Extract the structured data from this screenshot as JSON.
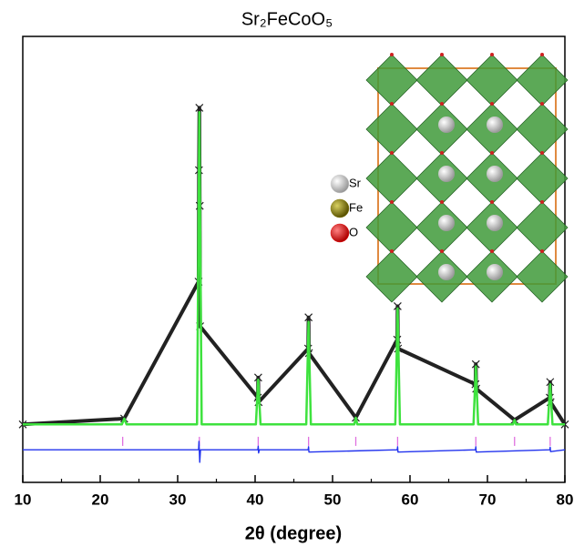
{
  "chart_data": {
    "type": "line",
    "title": "Sr₂FeCoO₅",
    "x_label": "2θ (degree)",
    "xlim": [
      10,
      80
    ],
    "xticks": [
      10,
      20,
      30,
      40,
      50,
      60,
      70,
      80
    ],
    "xminorticks": [
      15,
      25,
      35,
      45,
      55,
      65,
      75
    ],
    "ylim": [
      0,
      100
    ],
    "series": [
      {
        "style": "line-markers",
        "color": "#222222",
        "x": [
          10,
          23.1,
          32.7,
          32.75,
          32.8,
          32.85,
          32.9,
          40.35,
          40.4,
          40.45,
          46.85,
          46.9,
          46.95,
          53.0,
          58.35,
          58.4,
          58.45,
          68.45,
          68.5,
          68.55,
          73.5,
          78.05,
          78.1,
          78.15,
          80
        ],
        "values": [
          13,
          14.3,
          45,
          70,
          84,
          62,
          35,
          19,
          23.5,
          18,
          30,
          37,
          29,
          14.5,
          32,
          39.5,
          30,
          22,
          26.5,
          21,
          14,
          19,
          22.5,
          18,
          13
        ]
      },
      {
        "style": "line",
        "color": "#3ee23e",
        "x": [
          10,
          22.8,
          23.1,
          23.4,
          32.5,
          32.8,
          33.1,
          40.1,
          40.4,
          40.7,
          46.6,
          46.9,
          47.2,
          52.8,
          53.0,
          53.2,
          58.1,
          58.4,
          58.7,
          68.2,
          68.5,
          68.8,
          73.3,
          73.5,
          73.7,
          77.8,
          78.1,
          78.4,
          80
        ],
        "values": [
          13,
          13,
          14.3,
          13,
          13,
          83,
          13,
          13,
          23,
          13,
          13,
          36,
          13,
          13,
          14.5,
          13,
          13,
          39,
          13,
          13,
          26,
          13,
          13,
          14,
          13,
          13,
          22,
          13,
          13
        ]
      },
      {
        "style": "ticks",
        "color": "#e070e0",
        "x": [
          22.9,
          32.8,
          40.4,
          46.9,
          53.0,
          58.4,
          68.5,
          73.5,
          78.1
        ],
        "values": [
          9.2,
          9.2,
          9.2,
          9.2,
          9.2,
          9.2,
          9.2,
          9.2,
          9.2
        ]
      },
      {
        "style": "line",
        "color": "#2233ee",
        "x": [
          10,
          32.7,
          32.75,
          32.85,
          32.95,
          40.35,
          40.4,
          40.45,
          40.55,
          46.85,
          46.9,
          46.95,
          58.35,
          58.4,
          58.45,
          68.45,
          68.5,
          68.55,
          78.05,
          78.1,
          78.15,
          80
        ],
        "values": [
          7.3,
          7.3,
          9.2,
          4.5,
          7.3,
          7.3,
          8.1,
          6.6,
          7.3,
          7.3,
          8.0,
          6.8,
          7.3,
          8.0,
          6.8,
          7.3,
          8.0,
          6.8,
          7.3,
          7.9,
          6.9,
          7.3
        ]
      }
    ],
    "legend": [
      {
        "label": "Sr",
        "color": "#d8d8d8"
      },
      {
        "label": "Fe",
        "color": "#8a8010"
      },
      {
        "label": "O",
        "color": "#e81010"
      }
    ]
  }
}
